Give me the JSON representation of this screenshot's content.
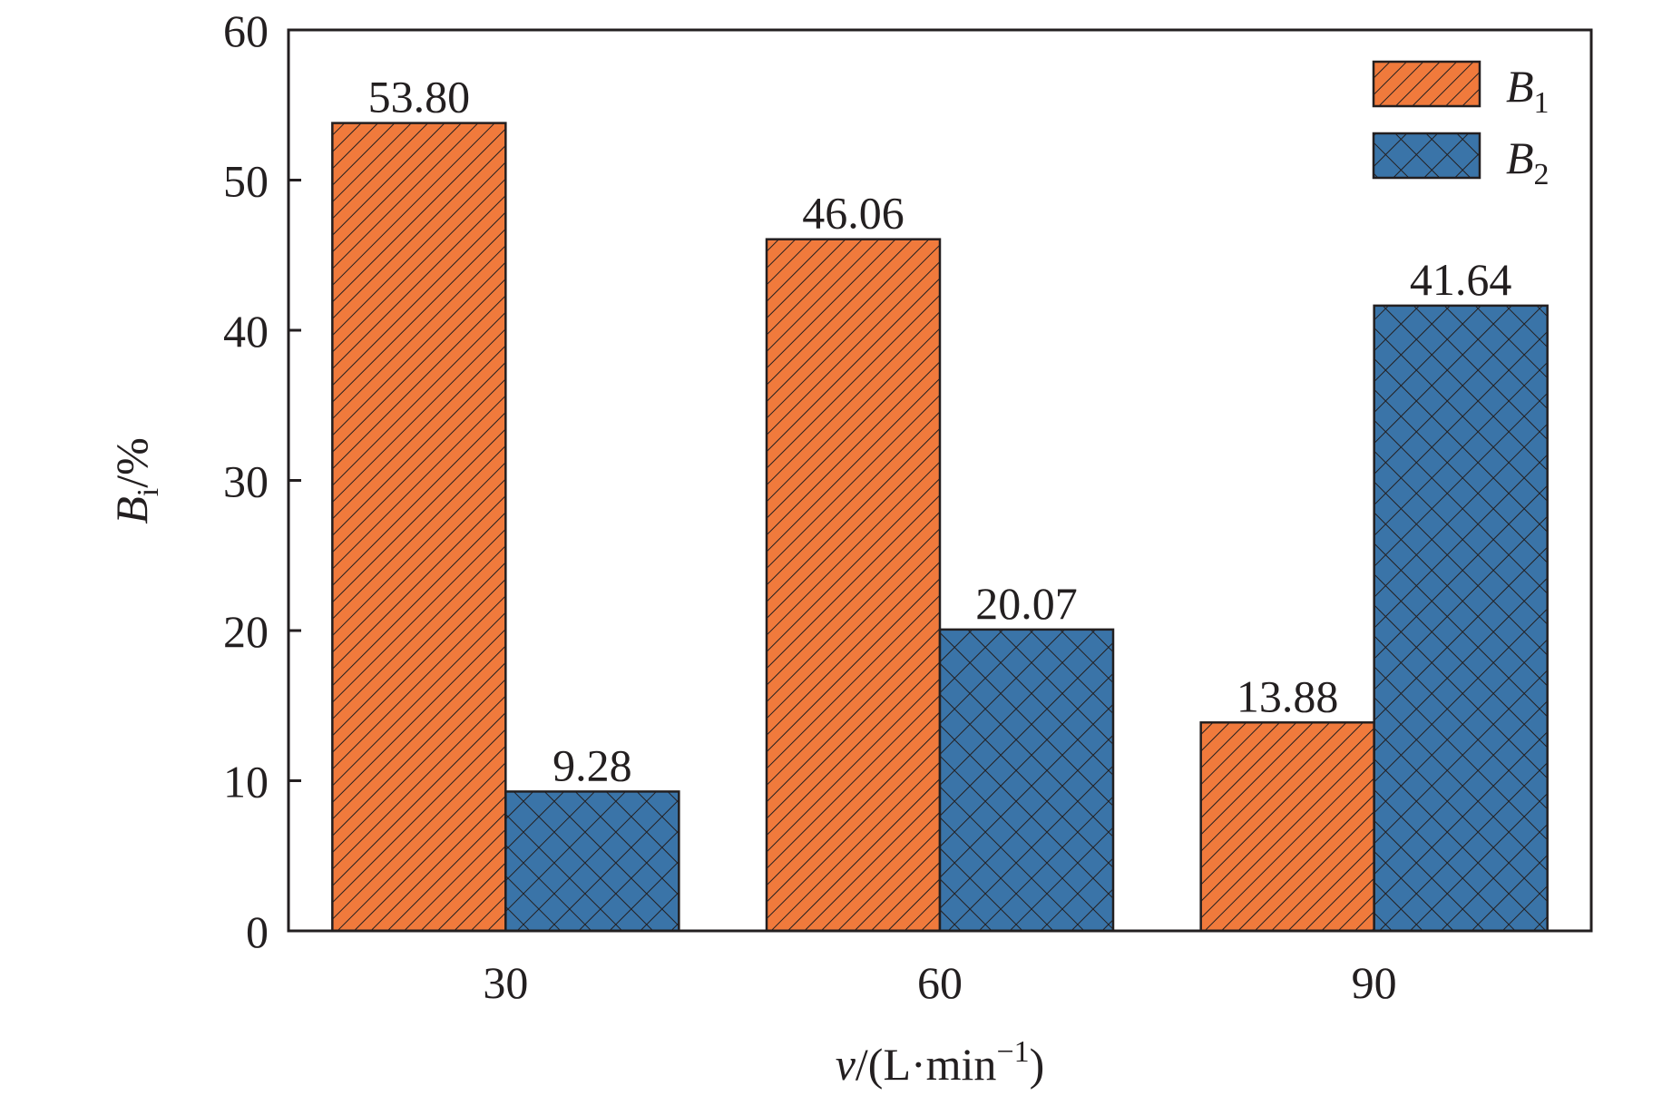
{
  "chart_data": {
    "type": "bar",
    "categories": [
      "30",
      "60",
      "90"
    ],
    "series": [
      {
        "name": "B1",
        "legend_main": "B",
        "legend_sub": "1",
        "color": "#f07a3c",
        "pattern": "diagonal-hatch",
        "values": [
          53.8,
          46.06,
          13.88
        ],
        "labels": [
          "53.80",
          "46.06",
          "13.88"
        ]
      },
      {
        "name": "B2",
        "legend_main": "B",
        "legend_sub": "2",
        "color": "#3a74a8",
        "pattern": "cross-hatch",
        "values": [
          9.28,
          20.07,
          41.64
        ],
        "labels": [
          "9.28",
          "20.07",
          "41.64"
        ]
      }
    ],
    "ylim": [
      0,
      60
    ],
    "yticks": [
      "0",
      "10",
      "20",
      "30",
      "40",
      "50",
      "60"
    ],
    "ylabel": {
      "main": "B",
      "sub": "i",
      "rest": "/%"
    },
    "xlabel": {
      "var": "v",
      "unit": "/(L·min",
      "exp": "−1",
      "close": ")"
    },
    "legend_position": "top-right"
  }
}
